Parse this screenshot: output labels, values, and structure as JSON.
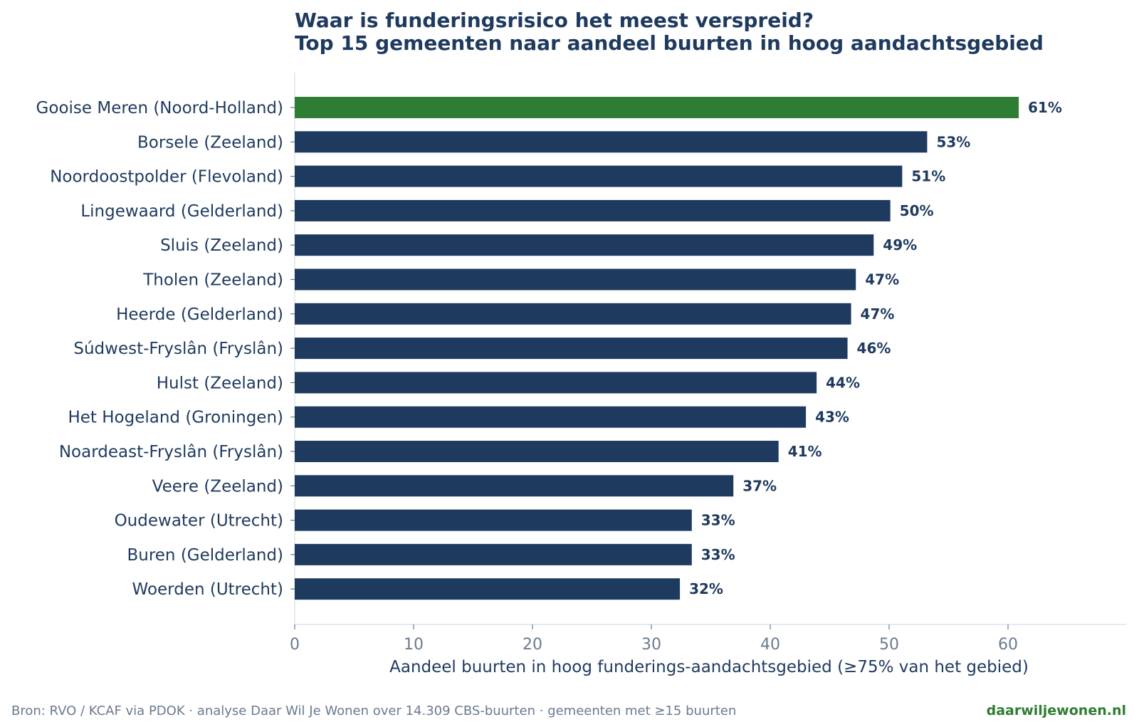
{
  "chart_data": {
    "type": "bar",
    "orientation": "horizontal",
    "title_lines": [
      "Waar is funderingsrisico het meest verspreid?",
      "Top 15 gemeenten naar aandeel buurten in hoog aandachtsgebied"
    ],
    "xlabel": "Aandeel buurten in hoog funderings-aandachtsgebied (≥75% van het gebied)",
    "ylabel": "",
    "xlim": [
      0,
      70
    ],
    "xticks": [
      0,
      10,
      20,
      30,
      40,
      50,
      60
    ],
    "grid": false,
    "categories": [
      "Gooise Meren (Noord-Holland)",
      "Borsele (Zeeland)",
      "Noordoostpolder (Flevoland)",
      "Lingewaard (Gelderland)",
      "Sluis (Zeeland)",
      "Tholen (Zeeland)",
      "Heerde (Gelderland)",
      "Súdwest-Fryslân (Fryslân)",
      "Hulst (Zeeland)",
      "Het Hogeland (Groningen)",
      "Noardeast-Fryslân (Fryslân)",
      "Veere (Zeeland)",
      "Oudewater (Utrecht)",
      "Buren (Gelderland)",
      "Woerden (Utrecht)"
    ],
    "values": [
      60.9,
      53.2,
      51.1,
      50.1,
      48.7,
      47.2,
      46.8,
      46.5,
      43.9,
      43.0,
      40.7,
      36.9,
      33.4,
      33.4,
      32.4
    ],
    "value_labels": [
      "61%",
      "53%",
      "51%",
      "50%",
      "49%",
      "47%",
      "47%",
      "46%",
      "44%",
      "43%",
      "41%",
      "37%",
      "33%",
      "33%",
      "32%"
    ],
    "highlight_index": 0,
    "colors": {
      "bar": "#1f3a5f",
      "highlight": "#2e7d32",
      "text": "#1f3a5f",
      "tick": "#6b7a8f",
      "axis": "#dde3ea"
    }
  },
  "footer": {
    "source": "Bron: RVO / KCAF via PDOK · analyse Daar Wil Je Wonen over 14.309 CBS-buurten · gemeenten met ≥15 buurten",
    "brand": "daarwiljewonen.nl"
  }
}
